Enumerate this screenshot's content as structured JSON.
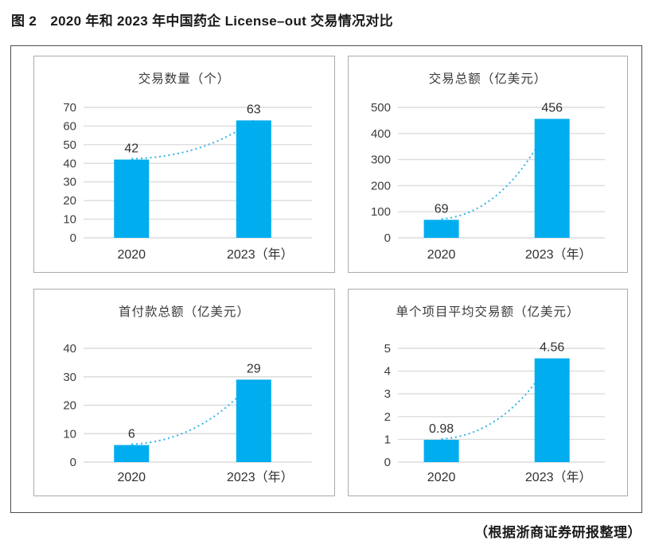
{
  "figure": {
    "caption": "图 2　2020 年和 2023 年中国药企 License–out 交易情况对比",
    "source_note": "（根据浙商证券研报整理）"
  },
  "colors": {
    "bar": "#00ADEF",
    "trend": "#2FB3E8",
    "grid": "#DCDCDC",
    "tick_text": "#3d3d3d",
    "value_text": "#303030",
    "title_text": "#3a3a3a",
    "panel_border": "#ABABAB",
    "frame_border": "#4D4D4D"
  },
  "chart_data": [
    {
      "type": "bar",
      "title": "交易数量（个）",
      "categories": [
        "2020",
        "2023（年）"
      ],
      "values": [
        42,
        63
      ],
      "value_labels": [
        "42",
        "63"
      ],
      "ylim": [
        0,
        70
      ],
      "ytick_step": 10,
      "ytick_labels": [
        "0",
        "10",
        "20",
        "30",
        "40",
        "50",
        "60",
        "70"
      ],
      "grid": true,
      "legend": "none",
      "trend_line": "dotted"
    },
    {
      "type": "bar",
      "title": "交易总额（亿美元）",
      "categories": [
        "2020",
        "2023（年）"
      ],
      "values": [
        69,
        456
      ],
      "value_labels": [
        "69",
        "456"
      ],
      "ylim": [
        0,
        500
      ],
      "ytick_step": 100,
      "ytick_labels": [
        "0",
        "100",
        "200",
        "300",
        "400",
        "500"
      ],
      "grid": true,
      "legend": "none",
      "trend_line": "dotted"
    },
    {
      "type": "bar",
      "title": "首付款总额（亿美元）",
      "categories": [
        "2020",
        "2023（年）"
      ],
      "values": [
        6,
        29
      ],
      "value_labels": [
        "6",
        "29"
      ],
      "ylim": [
        0,
        40
      ],
      "ytick_step": 10,
      "ytick_labels": [
        "0",
        "10",
        "20",
        "30",
        "40"
      ],
      "grid": true,
      "legend": "none",
      "trend_line": "dotted"
    },
    {
      "type": "bar",
      "title": "单个项目平均交易额（亿美元）",
      "categories": [
        "2020",
        "2023（年）"
      ],
      "values": [
        0.98,
        4.56
      ],
      "value_labels": [
        "0.98",
        "4.56"
      ],
      "ylim": [
        0,
        5
      ],
      "ytick_step": 1,
      "ytick_labels": [
        "0",
        "1",
        "2",
        "3",
        "4",
        "5"
      ],
      "grid": true,
      "legend": "none",
      "trend_line": "dotted"
    }
  ]
}
